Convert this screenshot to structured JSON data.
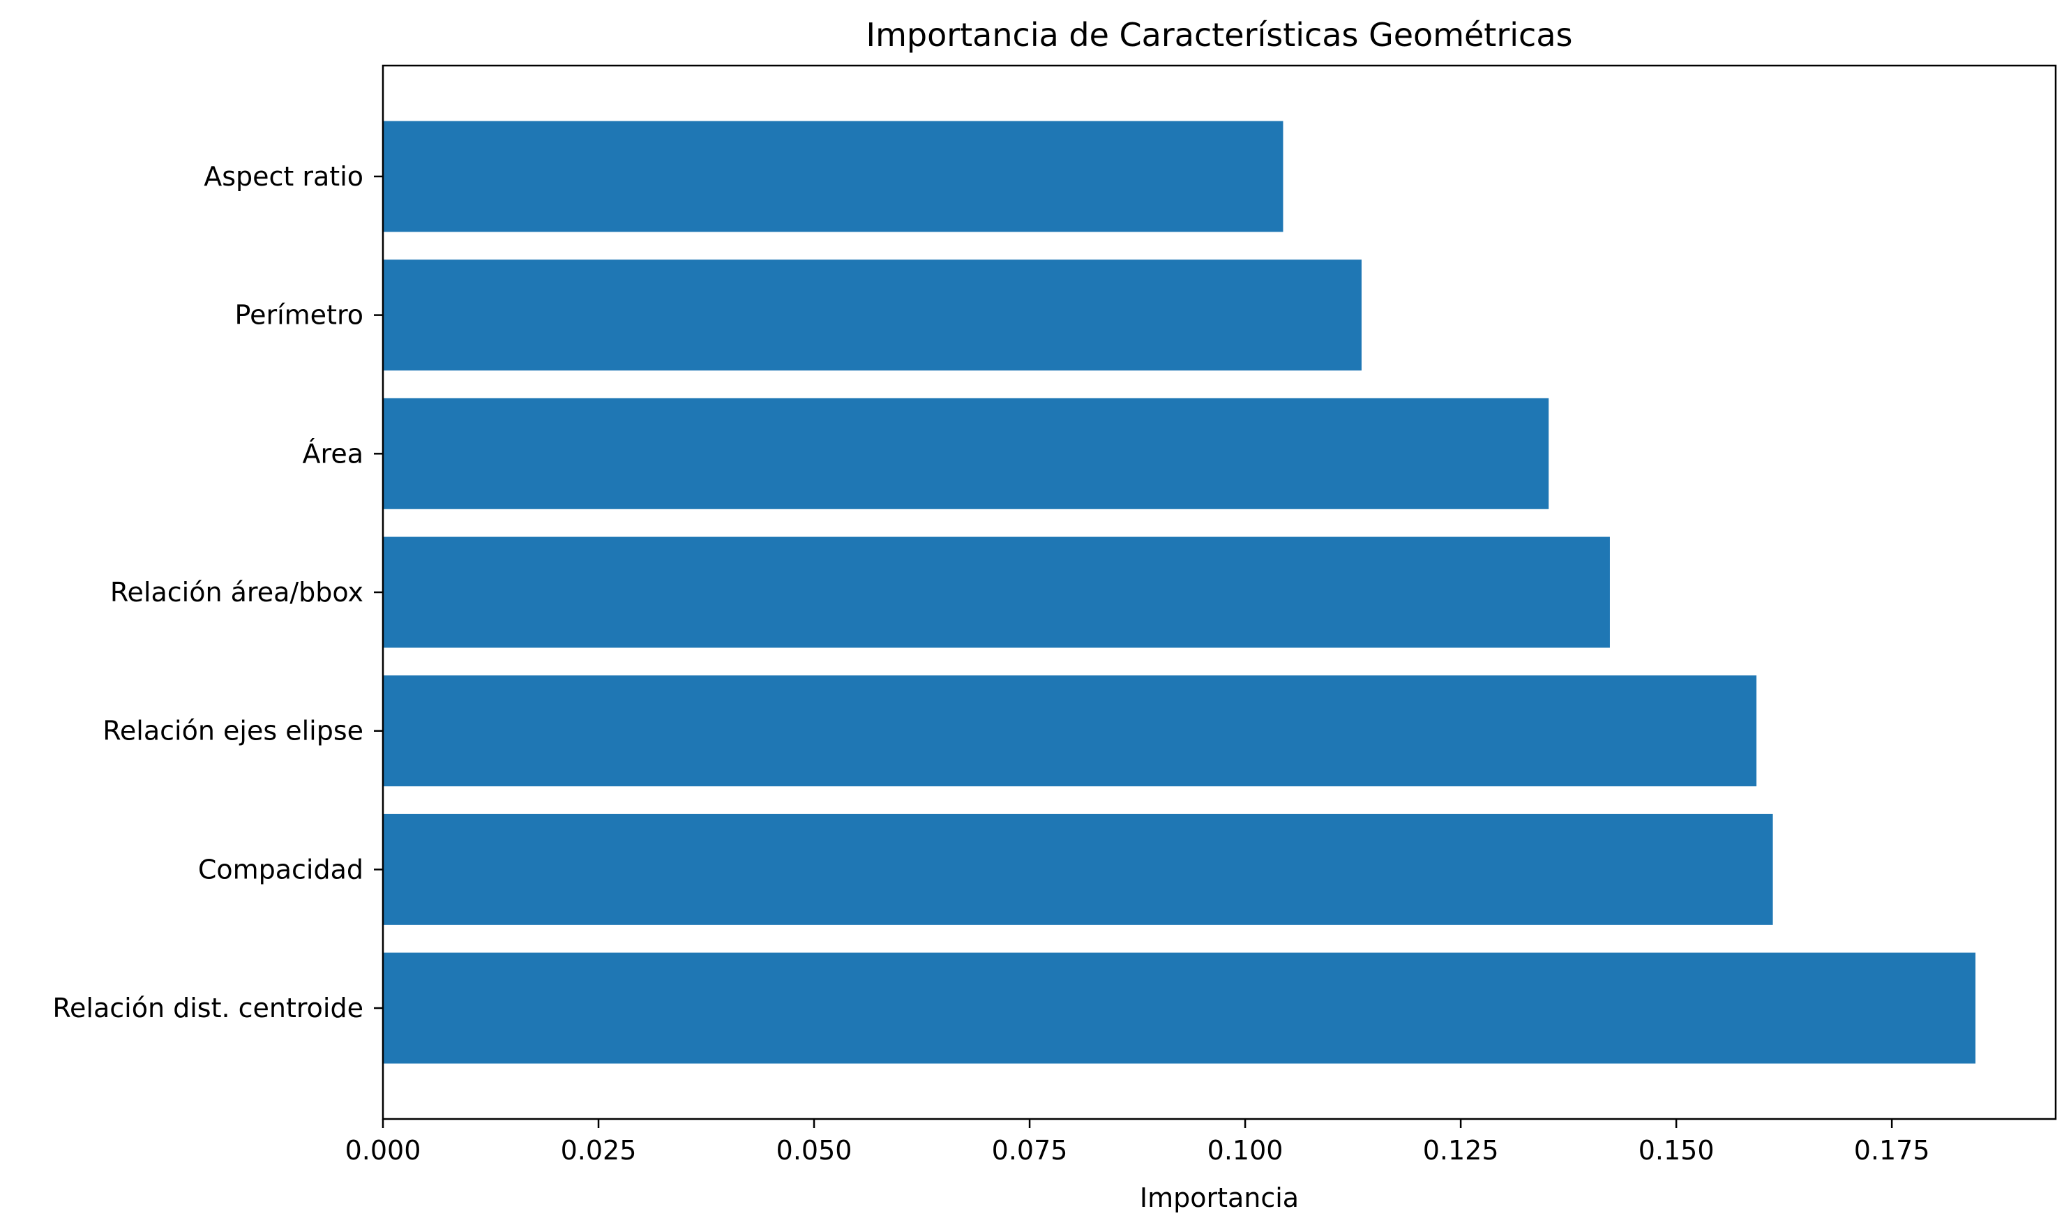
{
  "chart_data": {
    "type": "bar",
    "orientation": "horizontal",
    "title": "Importancia de Características Geométricas",
    "xlabel": "Importancia",
    "ylabel": "",
    "categories": [
      "Relación dist. centroide",
      "Compacidad",
      "Relación ejes elipse",
      "Relación área/bbox",
      "Área",
      "Perímetro",
      "Aspect ratio"
    ],
    "values": [
      0.1847,
      0.1612,
      0.1593,
      0.1423,
      0.1352,
      0.1135,
      0.1044
    ],
    "xlim": [
      0,
      0.194
    ],
    "xticks": [
      0.0,
      0.025,
      0.05,
      0.075,
      0.1,
      0.125,
      0.15,
      0.175
    ],
    "xtick_labels": [
      "0.000",
      "0.025",
      "0.050",
      "0.075",
      "0.100",
      "0.125",
      "0.150",
      "0.175"
    ],
    "bar_color": "#1f77b4",
    "grid": false,
    "legend": false
  }
}
